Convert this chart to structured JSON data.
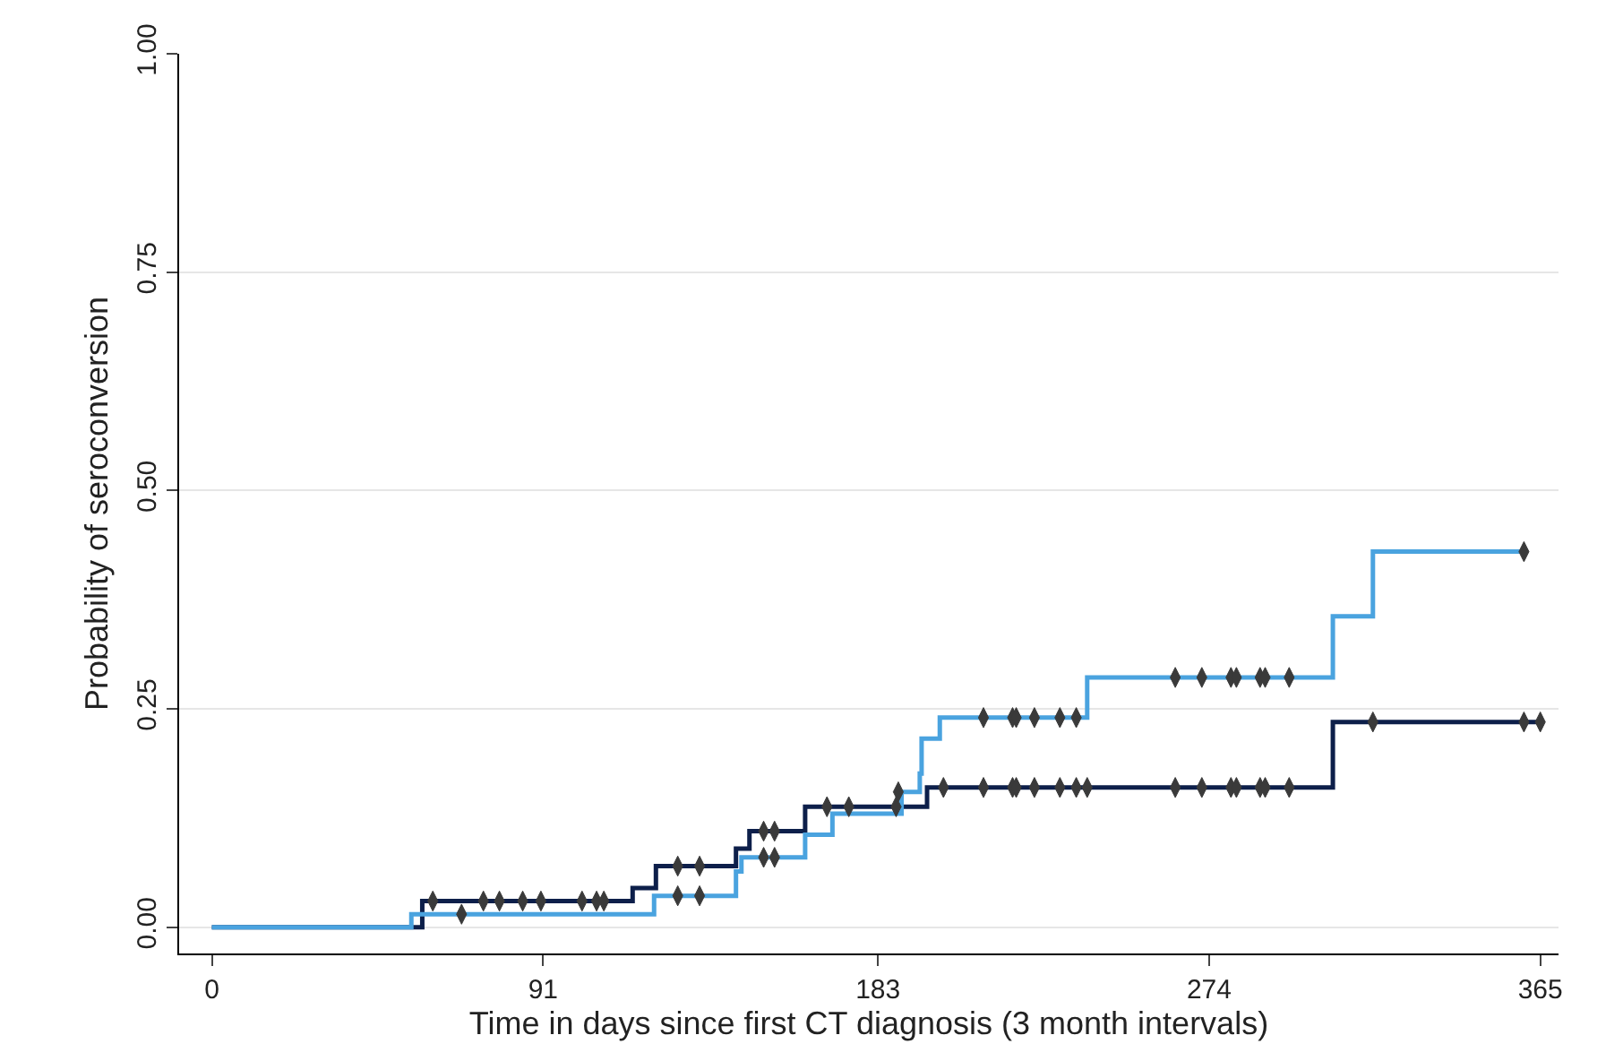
{
  "chart_data": {
    "type": "step",
    "xlabel": "Time in days since first CT diagnosis (3 month intervals)",
    "ylabel": "Probability of seroconversion",
    "xlim": [
      -9,
      370
    ],
    "xticks": [
      0,
      91,
      183,
      274,
      365
    ],
    "ylim": [
      -0.03,
      1.0
    ],
    "yticks": [
      {
        "value": 0,
        "label": "0.00"
      },
      0.25,
      {
        "value": 0.5,
        "label": "0.50"
      },
      0.75,
      {
        "value": 1,
        "label": "1.00"
      }
    ],
    "grid": "y",
    "series": [
      {
        "color": "#0d1f4a",
        "x": [
          0,
          57.8,
          115.6,
          122,
          144,
          147.7,
          163,
          196.5,
          308,
          365
        ],
        "values": [
          0,
          0.03,
          0.045,
          0.07,
          0.09,
          0.11,
          0.138,
          0.16,
          0.235,
          0.235
        ]
      },
      {
        "color": "#4aa3df",
        "x": [
          0,
          54.8,
          121.5,
          144,
          145.5,
          163,
          170.5,
          189.5,
          194.5,
          195,
          200,
          240.5,
          308,
          319,
          360
        ],
        "values": [
          0,
          0.015,
          0.036,
          0.064,
          0.08,
          0.106,
          0.13,
          0.155,
          0.176,
          0.216,
          0.24,
          0.286,
          0.356,
          0.43,
          0.43
        ]
      },
      {
        "type": "scatter",
        "color": "#3a3a3a",
        "x": [
          60.7,
          74.6,
          79,
          85.4,
          90.4,
          101.7,
          105.7,
          107.7,
          128,
          134,
          151.6,
          154.6,
          169,
          175,
          188,
          201,
          212,
          220,
          221,
          226,
          233,
          237.5,
          240.5,
          264.7,
          272,
          280,
          281.5,
          288,
          289.4,
          296,
          319,
          360.5,
          365
        ],
        "values": [
          0.03,
          0.03,
          0.03,
          0.03,
          0.03,
          0.03,
          0.03,
          0.03,
          0.07,
          0.07,
          0.11,
          0.11,
          0.138,
          0.138,
          0.138,
          0.16,
          0.16,
          0.16,
          0.16,
          0.16,
          0.16,
          0.16,
          0.16,
          0.16,
          0.16,
          0.16,
          0.16,
          0.16,
          0.16,
          0.16,
          0.235,
          0.235,
          0.235
        ]
      },
      {
        "type": "scatter",
        "color": "#3a3a3a",
        "x": [
          68.6,
          128,
          134,
          151.6,
          154.6,
          188.6,
          212,
          220,
          221,
          226,
          233,
          237.5,
          264.7,
          272,
          280,
          281.5,
          288,
          289.4,
          296,
          360.5
        ],
        "values": [
          0.015,
          0.036,
          0.036,
          0.08,
          0.08,
          0.155,
          0.24,
          0.24,
          0.24,
          0.24,
          0.24,
          0.24,
          0.286,
          0.286,
          0.286,
          0.286,
          0.286,
          0.286,
          0.286,
          0.43
        ]
      }
    ]
  }
}
